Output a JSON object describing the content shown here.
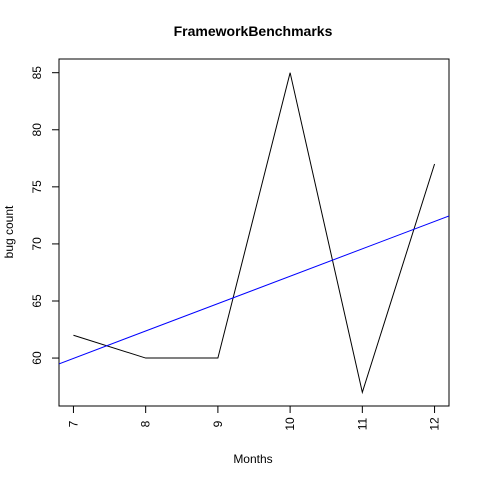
{
  "chart_data": {
    "type": "line",
    "title": "FrameworkBenchmarks",
    "xlabel": "Months",
    "ylabel": "bug count",
    "x": [
      7,
      8,
      9,
      10,
      11,
      12
    ],
    "series": [
      {
        "values": [
          62,
          60,
          60,
          85,
          57,
          77
        ],
        "color": "#000000"
      }
    ],
    "trend_line": {
      "intercept": 43.17,
      "slope": 2.4,
      "color": "#0000ff"
    },
    "xlim": [
      6.8,
      12.2
    ],
    "ylim": [
      55.8,
      86.2
    ],
    "xticks": [
      7,
      8,
      9,
      10,
      11,
      12
    ],
    "yticks": [
      60,
      65,
      70,
      75,
      80,
      85
    ],
    "grid": false,
    "legend": "none"
  }
}
